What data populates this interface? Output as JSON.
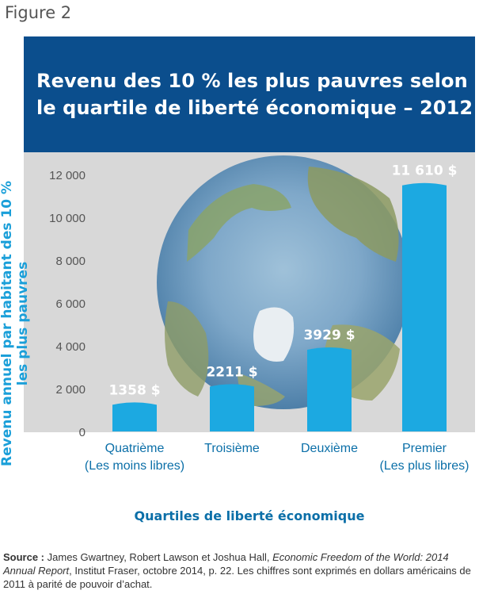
{
  "figure_label": "Figure 2",
  "title_line1": "Revenu des 10 % les plus pauvres selon",
  "title_line2": "le quartile de liberté économique – 2012",
  "source": {
    "label": "Source :",
    "authors": "James Gwartney, Robert Lawson et Joshua Hall,",
    "publication": "Economic Freedom of the World: 2014 Annual Report",
    "details": ", Institut Fraser, octobre 2014, p. 22. Les chiffres sont exprimés en dollars américains de 2011 à parité de pouvoir d’achat."
  },
  "colors": {
    "title_bg": "#0b4e8d",
    "bar": "#1ca9e1",
    "axis_label": "#1a9fd9",
    "plot_bg": "#d8d8d8"
  },
  "chart_data": {
    "type": "bar",
    "title": "Revenu des 10 % les plus pauvres selon le quartile de liberté économique – 2012",
    "xlabel": "Quartiles de liberté économique",
    "ylabel": "Revenu annuel par habitant des 10 % les plus pauvres",
    "categories": [
      [
        "Quatrième",
        "(Les moins libres)"
      ],
      [
        "Troisième"
      ],
      [
        "Deuxième"
      ],
      [
        "Premier",
        "(Les plus libres)"
      ]
    ],
    "values": [
      1358,
      2211,
      3929,
      11610
    ],
    "data_labels": [
      "1358 $",
      "2211 $",
      "3929 $",
      "11 610 $"
    ],
    "yticks": [
      0,
      2000,
      4000,
      6000,
      8000,
      10000,
      12000
    ],
    "ytick_labels": [
      "0",
      "2 000",
      "4 000",
      "6 000",
      "8 000",
      "10 000",
      "12 000"
    ],
    "ylim": [
      0,
      12600
    ],
    "grid": false,
    "legend": "none"
  }
}
